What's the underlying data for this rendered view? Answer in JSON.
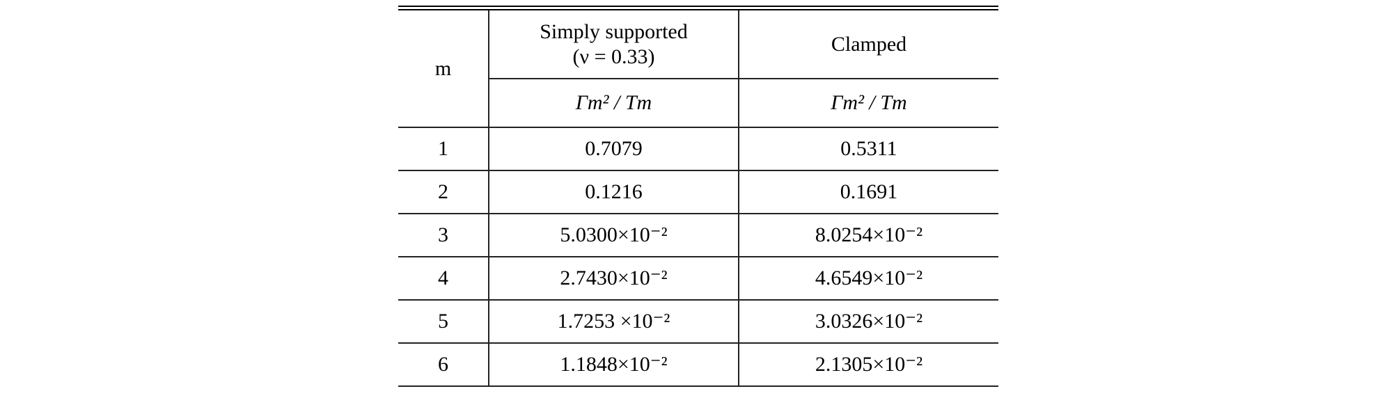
{
  "table": {
    "headers": {
      "m": "m",
      "simply_supported": "Simply supported",
      "nu_condition": "(ν = 0.33)",
      "clamped": "Clamped",
      "quantity_simply": "Γm² / Tm",
      "quantity_clamped": "Γm² / Tm"
    },
    "rows": [
      {
        "m": "1",
        "simply": "0.7079",
        "clamped": "0.5311"
      },
      {
        "m": "2",
        "simply": "0.1216",
        "clamped": "0.1691"
      },
      {
        "m": "3",
        "simply": "5.0300×10⁻²",
        "clamped": "8.0254×10⁻²"
      },
      {
        "m": "4",
        "simply": "2.7430×10⁻²",
        "clamped": "4.6549×10⁻²"
      },
      {
        "m": "5",
        "simply": "1.7253 ×10⁻²",
        "clamped": "3.0326×10⁻²"
      },
      {
        "m": "6",
        "simply": "1.1848×10⁻²",
        "clamped": "2.1305×10⁻²"
      }
    ]
  }
}
